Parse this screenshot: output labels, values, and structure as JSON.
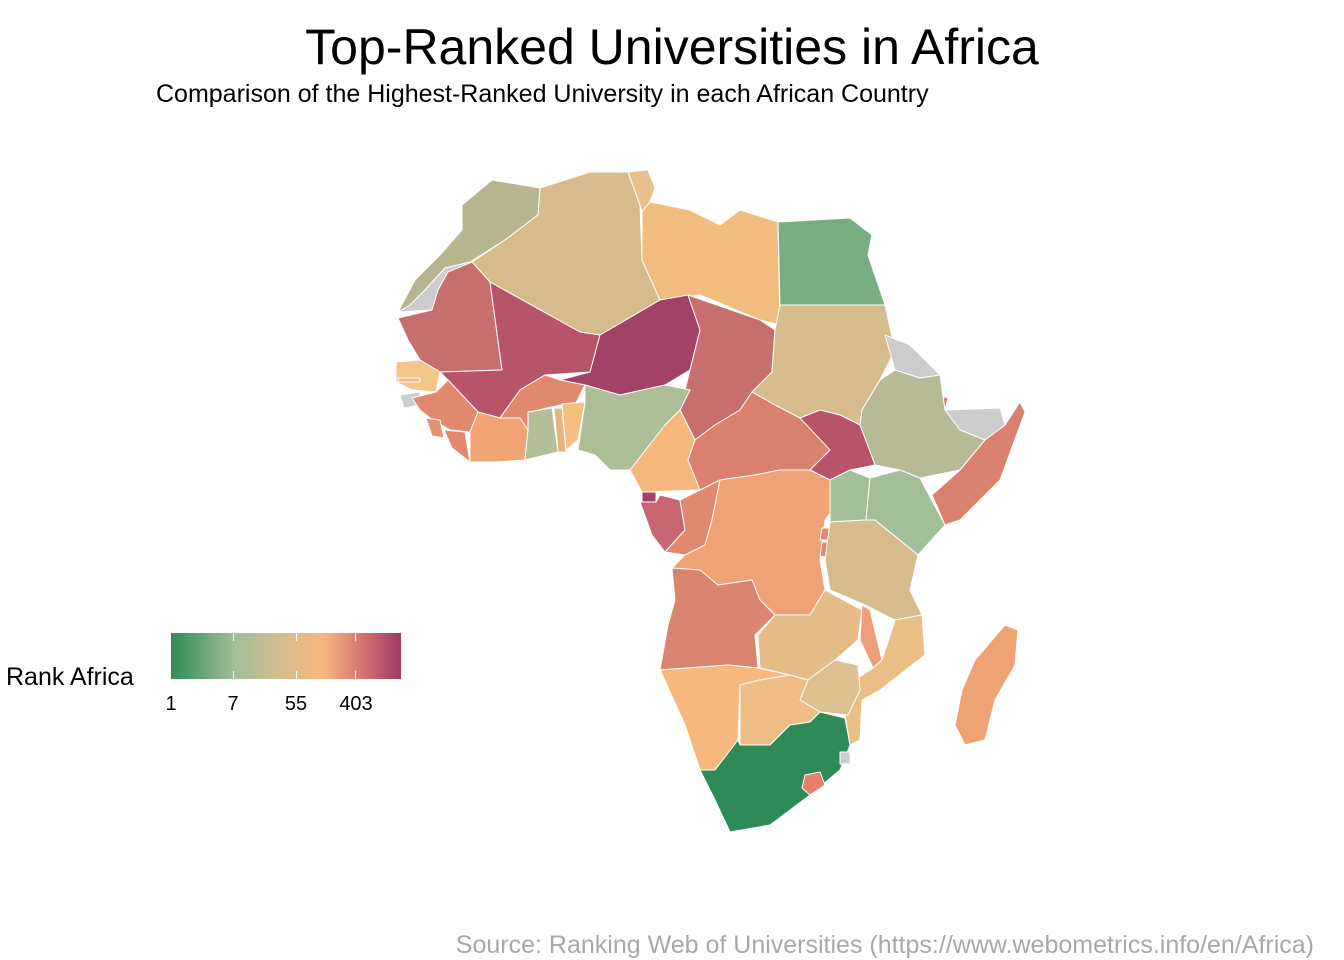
{
  "title": "Top-Ranked Universities in Africa",
  "subtitle": "Comparison of the Highest-Ranked University in each African Country",
  "legend": {
    "title": "Rank Africa",
    "ticks": [
      "1",
      "7",
      "55",
      "403"
    ],
    "scale": "log",
    "colors": {
      "low": "#2e8b57",
      "mid": "#f7b87e",
      "high": "#9e3a66",
      "no_data": "#cccccc"
    }
  },
  "source": "Source: Ranking Web of Universities (https://www.webometrics.info/en/Africa)"
}
